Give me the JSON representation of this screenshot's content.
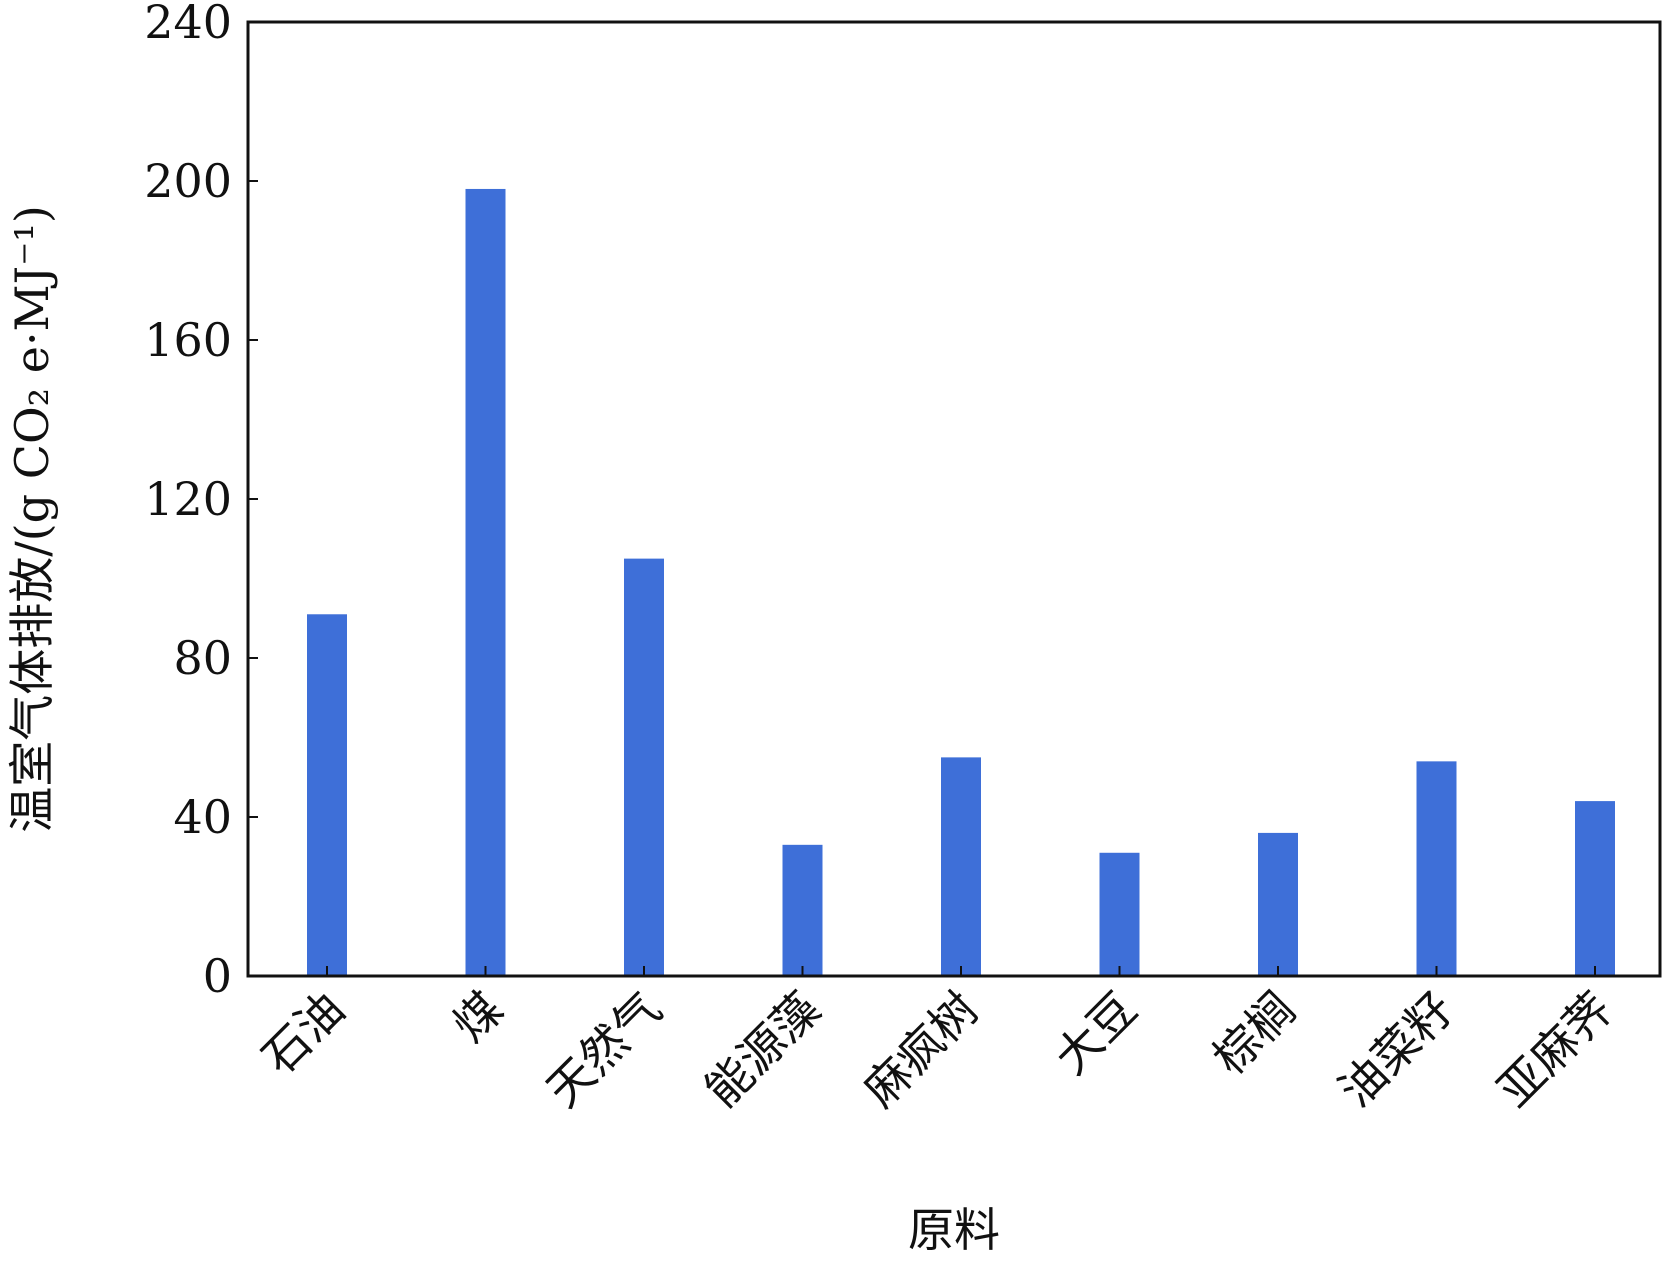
{
  "chart_data": {
    "type": "bar",
    "title": "",
    "xlabel": "原料",
    "ylabel": "温室气体排放/(g CO₂ e·MJ⁻¹)",
    "categories": [
      "石油",
      "煤",
      "天然气",
      "能源藻",
      "麻疯树",
      "大豆",
      "棕榈",
      "油菜籽",
      "亚麻荠"
    ],
    "values": [
      91,
      198,
      105,
      33,
      55,
      31,
      36,
      54,
      44
    ],
    "ylim": [
      0,
      240
    ],
    "yticks": [
      0,
      40,
      80,
      120,
      160,
      200,
      240
    ],
    "grid": false,
    "legend": "none",
    "bar_color": "#3e6fd8"
  }
}
